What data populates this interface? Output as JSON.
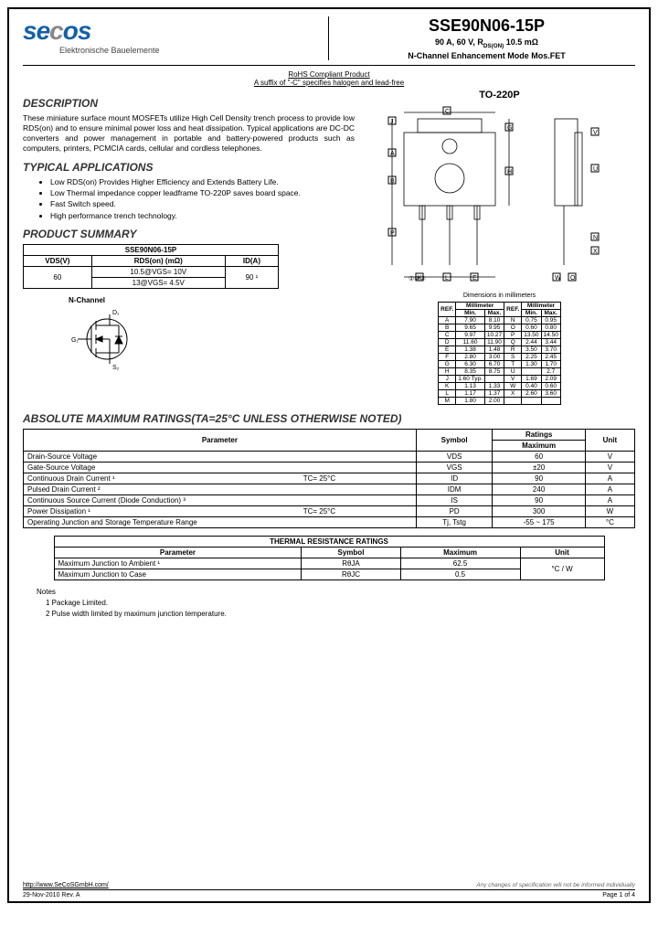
{
  "header": {
    "logo_main": "se",
    "logo_o": "c",
    "logo_end": "os",
    "logo_sub": "Elektronische Bauelemente",
    "part_number": "SSE90N06-15P",
    "spec_line1": "90 A, 60 V, R",
    "spec_line1_sub": "DS(ON)",
    "spec_line1_end": " 10.5 mΩ",
    "spec_line2": "N-Channel Enhancement Mode Mos.FET"
  },
  "rohs": {
    "line1": "RoHS Compliant Product",
    "line2": "A suffix of \"-C\" specifies halogen and lead-free"
  },
  "description": {
    "title": "DESCRIPTION",
    "text": "These miniature surface mount MOSFETs utilize High Cell Density trench process to provide low RDS(on) and to ensure minimal power loss and heat dissipation. Typical applications are DC-DC converters and power management in portable and battery-powered products such as computers, printers, PCMCIA cards, cellular and cordless telephones."
  },
  "applications": {
    "title": "TYPICAL APPLICATIONS",
    "items": [
      "Low RDS(on) Provides Higher Efficiency and Extends Battery Life.",
      "Low Thermal impedance copper leadframe TO-220P saves board space.",
      "Fast Switch speed.",
      "High performance trench technology."
    ]
  },
  "summary": {
    "title": "PRODUCT SUMMARY",
    "part": "SSE90N06-15P",
    "headers": [
      "VDS(V)",
      "RDS(on) (mΩ)",
      "ID(A)"
    ],
    "vds": "60",
    "rds1": "10.5@VGS= 10V",
    "rds2": "13@VGS= 4.5V",
    "id": "90 ¹"
  },
  "nchannel": {
    "label": "N-Channel",
    "d": "D₁",
    "g": "G₁",
    "s": "S₂"
  },
  "package": {
    "label": "TO-220P",
    "dims_note": "Dimensions in millimeters",
    "dim_headers": [
      "REF.",
      "Min.",
      "Max.",
      "REF.",
      "Min.",
      "Max."
    ],
    "dim_title": "Millimeter",
    "rows": [
      [
        "A",
        "7.90",
        "8.10",
        "N",
        "0.75",
        "0.95"
      ],
      [
        "B",
        "9.65",
        "9.95",
        "O",
        "0.60",
        "0.80"
      ],
      [
        "C",
        "9.97",
        "10.27",
        "P",
        "13.50",
        "14.50"
      ],
      [
        "D",
        "11.60",
        "11.90",
        "Q",
        "2.44",
        "3.44"
      ],
      [
        "E",
        "1.38",
        "1.48",
        "R",
        "3.50",
        "3.70"
      ],
      [
        "F",
        "2.80",
        "3.00",
        "S",
        "2.25",
        "2.45"
      ],
      [
        "G",
        "6.30",
        "6.70",
        "T",
        "1.30",
        "1.70"
      ],
      [
        "H",
        "8.35",
        "8.75",
        "U",
        "",
        "2.7"
      ],
      [
        "J",
        "1.60 Typ.",
        "",
        "V",
        "1.69",
        "2.09"
      ],
      [
        "K",
        "1.13",
        "1.33",
        "W",
        "0.40",
        "0.60"
      ],
      [
        "L",
        "1.17",
        "1.37",
        "X",
        "2.60",
        "3.60"
      ],
      [
        "M",
        "1.80",
        "2.00",
        "",
        "",
        ""
      ]
    ]
  },
  "maxratings": {
    "title": "ABSOLUTE MAXIMUM RATINGS(TA=25°C UNLESS OTHERWISE NOTED)",
    "headers": {
      "param": "Parameter",
      "symbol": "Symbol",
      "ratings": "Ratings",
      "max": "Maximum",
      "unit": "Unit"
    },
    "rows": [
      {
        "param": "Drain-Source Voltage",
        "cond": "",
        "sym": "VDS",
        "max": "60",
        "unit": "V"
      },
      {
        "param": "Gate-Source Voltage",
        "cond": "",
        "sym": "VGS",
        "max": "±20",
        "unit": "V"
      },
      {
        "param": "Continuous Drain Current ¹",
        "cond": "TC= 25°C",
        "sym": "ID",
        "max": "90",
        "unit": "A"
      },
      {
        "param": "Pulsed Drain Current ²",
        "cond": "",
        "sym": "IDM",
        "max": "240",
        "unit": "A"
      },
      {
        "param": "Continuous Source Current (Diode Conduction) ³",
        "cond": "",
        "sym": "IS",
        "max": "90",
        "unit": "A"
      },
      {
        "param": "Power Dissipation ¹",
        "cond": "TC= 25°C",
        "sym": "PD",
        "max": "300",
        "unit": "W"
      },
      {
        "param": "Operating Junction and Storage Temperature Range",
        "cond": "",
        "sym": "Tj, Tstg",
        "max": "-55 ~ 175",
        "unit": "°C"
      }
    ]
  },
  "thermal": {
    "title": "THERMAL RESISTANCE RATINGS",
    "headers": {
      "param": "Parameter",
      "symbol": "Symbol",
      "max": "Maximum",
      "unit": "Unit"
    },
    "rows": [
      {
        "param": "Maximum Junction to Ambient ¹",
        "sym": "RθJA",
        "max": "62.5"
      },
      {
        "param": "Maximum Junction to Case",
        "sym": "RθJC",
        "max": "0.5"
      }
    ],
    "unit": "°C / W"
  },
  "notes": {
    "title": "Notes",
    "items": [
      "1    Package Limited.",
      "2    Pulse width limited by maximum junction temperature."
    ]
  },
  "footer": {
    "url": "http://www.SeCoSGmbH.com/",
    "disclaimer": "Any changes of specification will not be informed individually",
    "date": "29-Nov-2010 Rev. A",
    "page": "Page 1  of  4"
  },
  "colors": {
    "logo_blue": "#1560a8",
    "logo_gray": "#888888"
  }
}
